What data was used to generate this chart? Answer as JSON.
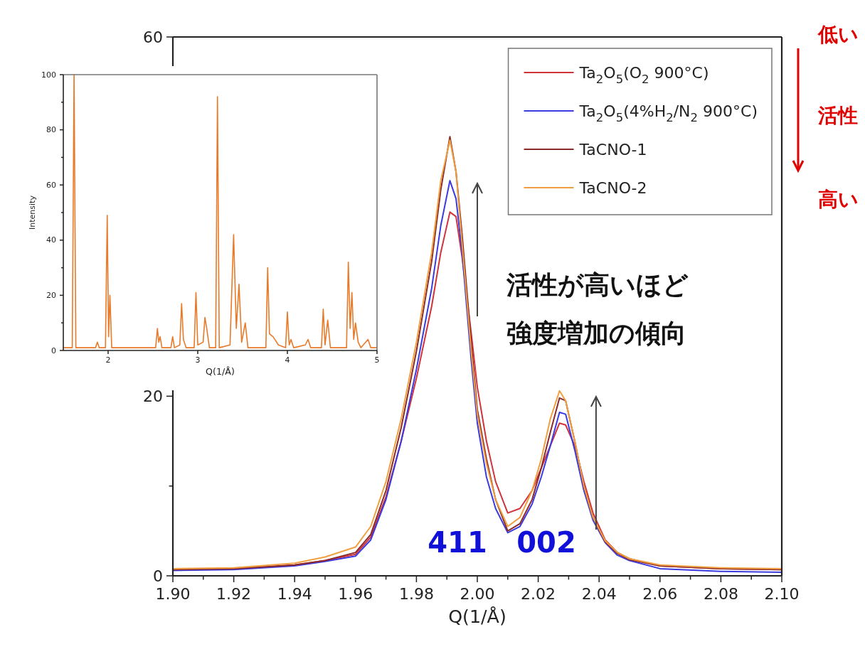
{
  "chart_data": [
    {
      "type": "line",
      "xlabel": "Q(1/Å)",
      "xlim": [
        1.9,
        2.1
      ],
      "ylim": [
        0,
        60
      ],
      "xticks": [
        {
          "value": 1.9,
          "label": "1.90"
        },
        {
          "value": 1.91,
          "label": null
        },
        {
          "value": 1.92,
          "label": "1.92"
        },
        {
          "value": 1.93,
          "label": null
        },
        {
          "value": 1.94,
          "label": "1.94"
        },
        {
          "value": 1.95,
          "label": null
        },
        {
          "value": 1.96,
          "label": "1.96"
        },
        {
          "value": 1.97,
          "label": null
        },
        {
          "value": 1.98,
          "label": "1.98"
        },
        {
          "value": 1.99,
          "label": null
        },
        {
          "value": 2.0,
          "label": "2.00"
        },
        {
          "value": 2.01,
          "label": null
        },
        {
          "value": 2.02,
          "label": "2.02"
        },
        {
          "value": 2.03,
          "label": null
        },
        {
          "value": 2.04,
          "label": "2.04"
        },
        {
          "value": 2.05,
          "label": null
        },
        {
          "value": 2.06,
          "label": "2.06"
        },
        {
          "value": 2.07,
          "label": null
        },
        {
          "value": 2.08,
          "label": "2.08"
        },
        {
          "value": 2.09,
          "label": null
        },
        {
          "value": 2.1,
          "label": "2.10"
        }
      ],
      "yticks": [
        0,
        {
          "value": 10,
          "label": null
        },
        20,
        60
      ],
      "legend": "top right",
      "x": [
        1.9,
        1.92,
        1.94,
        1.95,
        1.96,
        1.965,
        1.97,
        1.975,
        1.98,
        1.985,
        1.988,
        1.991,
        1.993,
        1.995,
        1.998,
        2.0,
        2.003,
        2.006,
        2.01,
        2.014,
        2.018,
        2.021,
        2.024,
        2.027,
        2.029,
        2.032,
        2.035,
        2.038,
        2.042,
        2.046,
        2.05,
        2.06,
        2.08,
        2.1
      ],
      "series": [
        {
          "name": "Ta$_{2}$O$_{5}$(O$_{2}$ 900°C)",
          "color": "#d0343a",
          "values": [
            0.7,
            0.8,
            1.2,
            1.7,
            2.4,
            4.3,
            8.8,
            15,
            22,
            30,
            36,
            40.5,
            40,
            35.5,
            27,
            21,
            15,
            10.5,
            7,
            7.5,
            9.5,
            12,
            14.5,
            17,
            16.8,
            14.5,
            10.5,
            7,
            4,
            2.6,
            1.9,
            1.1,
            0.8,
            0.7
          ]
        },
        {
          "name": "Ta$_{2}$O$_{5}$(4%H$_{2}$/N$_{2}$ 900°C)",
          "color": "#3b3bdf",
          "values": [
            0.6,
            0.7,
            1.1,
            1.6,
            2.2,
            4,
            8.5,
            15,
            23,
            32,
            39,
            44,
            42,
            36,
            24,
            17,
            11,
            7.5,
            4.8,
            5.5,
            8,
            11,
            14.5,
            18.2,
            18,
            14,
            9.5,
            6.2,
            3.7,
            2.3,
            1.7,
            0.8,
            0.5,
            0.4
          ]
        },
        {
          "name": "TaCNO-1",
          "color": "#8b2a2a",
          "values": [
            0.7,
            0.8,
            1.2,
            1.7,
            2.6,
            4.6,
            9.5,
            16.5,
            25,
            35,
            43,
            48.9,
            45,
            38,
            26,
            18.5,
            13,
            8.5,
            5,
            5.8,
            8.5,
            12,
            16,
            19.8,
            19.5,
            15,
            10,
            6.5,
            3.8,
            2.5,
            1.8,
            1.1,
            0.8,
            0.7
          ]
        },
        {
          "name": "TaCNO-2",
          "color": "#f0a040",
          "values": [
            0.8,
            0.9,
            1.4,
            2.1,
            3.2,
            5.5,
            10.5,
            17.5,
            26,
            36,
            44,
            48.5,
            45,
            37,
            25,
            18,
            12.5,
            8.5,
            5.5,
            6.5,
            9.5,
            13,
            17.5,
            20.6,
            19.5,
            15,
            10,
            6.5,
            3.9,
            2.6,
            1.9,
            1.2,
            0.9,
            0.8
          ]
        }
      ],
      "annotations": [
        "活性が高いほど",
        "強度増加の傾向",
        "411",
        "002",
        "低い",
        "活性",
        "高い"
      ]
    },
    {
      "type": "line",
      "xlabel": "Q(1/Å)",
      "ylabel": "Intensity",
      "xlim": [
        1.5,
        5
      ],
      "ylim": [
        0,
        100
      ],
      "xticks": [
        2,
        3,
        4,
        5
      ],
      "yticks": [
        0,
        {
          "value": 10,
          "label": null
        },
        20,
        {
          "value": 30,
          "label": null
        },
        40,
        {
          "value": 50,
          "label": null
        },
        60,
        {
          "value": 70,
          "label": null
        },
        80,
        {
          "value": 90,
          "label": null
        },
        100
      ],
      "x": [
        1.5,
        1.6,
        1.62,
        1.64,
        1.86,
        1.88,
        1.9,
        1.97,
        1.99,
        2.005,
        2.02,
        2.04,
        2.53,
        2.55,
        2.565,
        2.58,
        2.6,
        2.7,
        2.72,
        2.74,
        2.8,
        2.82,
        2.84,
        2.87,
        2.96,
        2.98,
        3.0,
        3.06,
        3.08,
        3.1,
        3.13,
        3.2,
        3.22,
        3.24,
        3.36,
        3.38,
        3.4,
        3.43,
        3.46,
        3.49,
        3.53,
        3.56,
        3.76,
        3.78,
        3.8,
        3.84,
        3.9,
        3.98,
        4.0,
        4.02,
        4.04,
        4.07,
        4.2,
        4.23,
        4.26,
        4.38,
        4.4,
        4.42,
        4.45,
        4.48,
        4.66,
        4.68,
        4.7,
        4.72,
        4.74,
        4.76,
        4.79,
        4.82,
        4.9,
        4.93,
        5.0
      ],
      "series": [
        {
          "color": "#e87a2a",
          "values": [
            1,
            1,
            100,
            1,
            1,
            3,
            1,
            1,
            49,
            5,
            20,
            1,
            1,
            8,
            3,
            5,
            1,
            1,
            5,
            1,
            2,
            17,
            4,
            1,
            1,
            21,
            2,
            3,
            12,
            8,
            1,
            1,
            92,
            1,
            2,
            22,
            42,
            8,
            24,
            3,
            10,
            1,
            1,
            30,
            6,
            5,
            2,
            1,
            14,
            2,
            4,
            1,
            2,
            4,
            1,
            1,
            15,
            2,
            11,
            1,
            1,
            32,
            8,
            21,
            4,
            10,
            3,
            1,
            4,
            1,
            1
          ]
        }
      ]
    }
  ]
}
